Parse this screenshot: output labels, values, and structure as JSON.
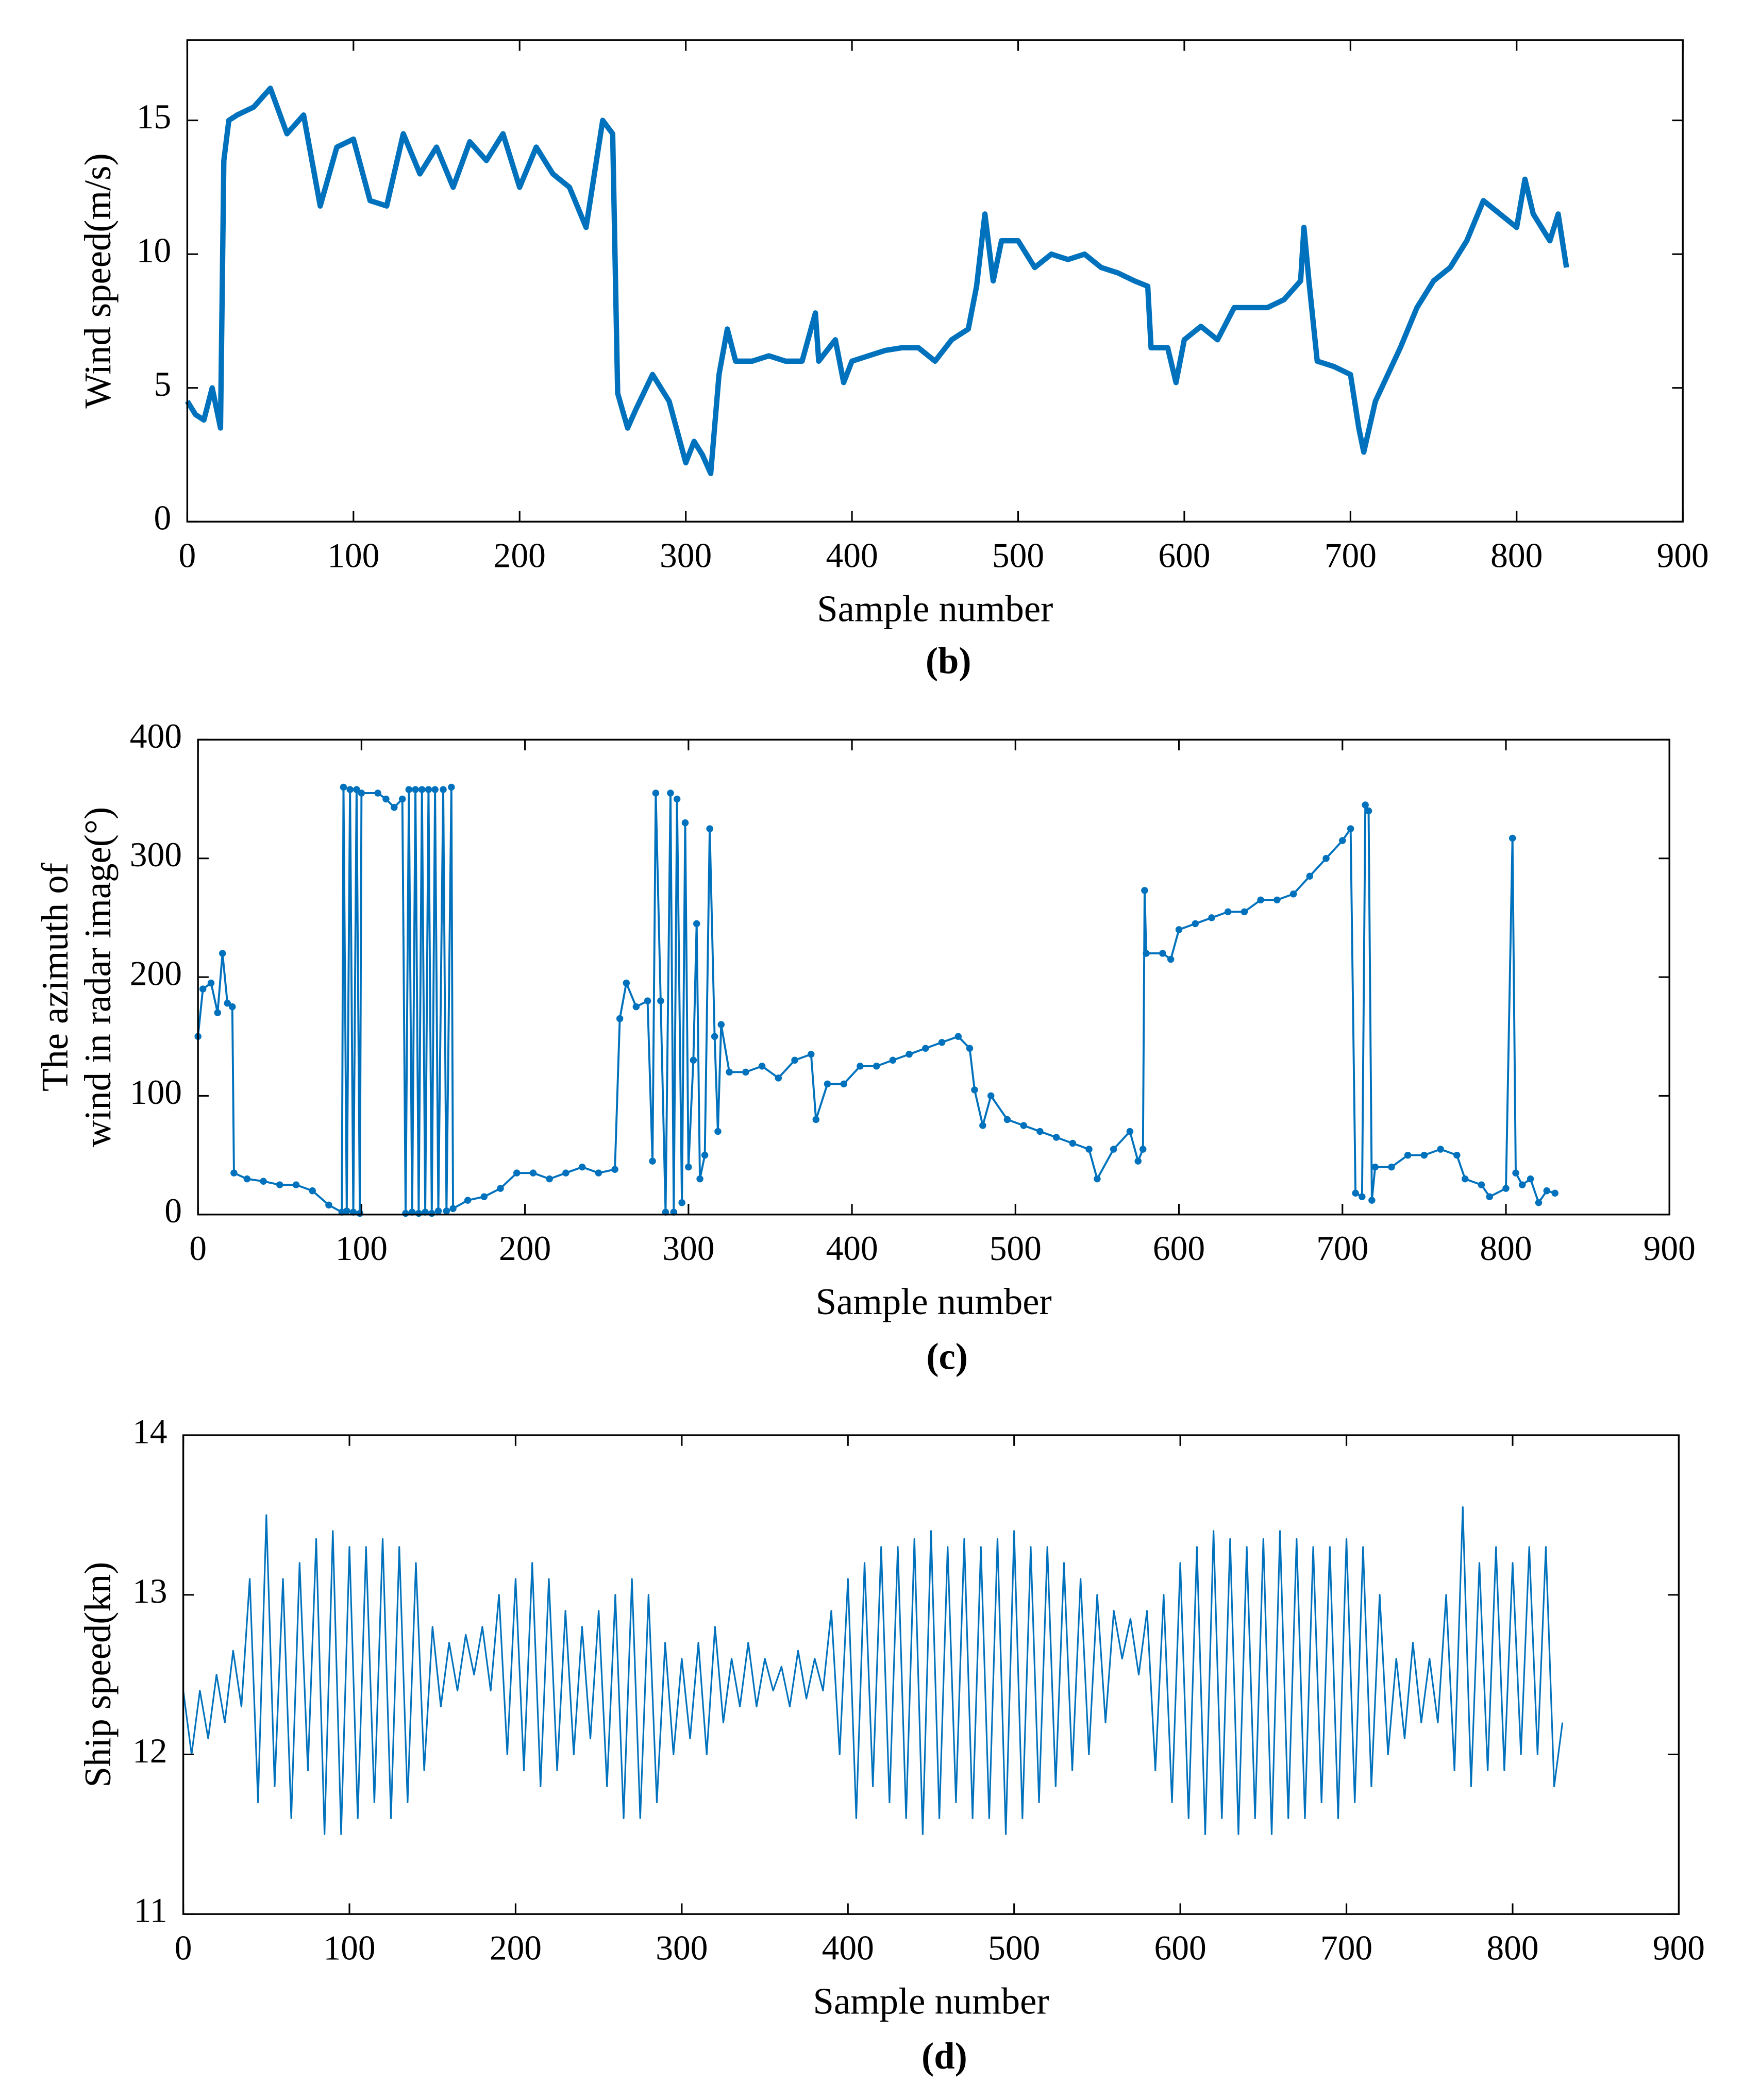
{
  "chart_data": [
    {
      "type": "line",
      "caption": "(b)",
      "xlabel": "Sample number",
      "ylabel": [
        "Wind speed(m/s)"
      ],
      "xlim": [
        0,
        900
      ],
      "xticks": [
        0,
        100,
        200,
        300,
        400,
        500,
        600,
        700,
        800,
        900
      ],
      "ylim": [
        0,
        18
      ],
      "yticks": [
        0,
        5,
        10,
        15
      ],
      "line_width": 4,
      "marker": null,
      "series": [
        {
          "name": "Wind speed",
          "color": "#0072bd",
          "x": [
            0,
            5,
            10,
            15,
            20,
            22,
            25,
            30,
            40,
            50,
            60,
            70,
            80,
            90,
            100,
            110,
            120,
            130,
            140,
            150,
            160,
            170,
            180,
            190,
            200,
            210,
            220,
            230,
            240,
            250,
            256,
            259,
            265,
            270,
            280,
            290,
            300,
            305,
            310,
            315,
            320,
            325,
            330,
            340,
            350,
            360,
            370,
            378,
            380,
            390,
            395,
            400,
            410,
            420,
            430,
            440,
            450,
            460,
            470,
            475,
            480,
            485,
            490,
            500,
            510,
            520,
            530,
            540,
            550,
            560,
            570,
            578,
            580,
            590,
            595,
            600,
            610,
            620,
            630,
            640,
            650,
            660,
            670,
            672,
            675,
            680,
            690,
            700,
            705,
            708,
            715,
            730,
            740,
            750,
            760,
            770,
            780,
            790,
            800,
            805,
            810,
            820,
            825,
            830
          ],
          "values": [
            4.5,
            4.0,
            3.8,
            5.0,
            3.5,
            13.5,
            15,
            15.2,
            15.5,
            16.2,
            14.5,
            15.2,
            11.8,
            14,
            14.3,
            12,
            11.8,
            14.5,
            13,
            14,
            12.5,
            14.2,
            13.5,
            14.5,
            12.5,
            14,
            13,
            12.5,
            11,
            15,
            14.5,
            4.8,
            3.5,
            4.2,
            5.5,
            4.5,
            2.2,
            3,
            2.5,
            1.8,
            5.5,
            7.2,
            6,
            6,
            6.2,
            6,
            6,
            7.8,
            6,
            6.8,
            5.2,
            6,
            6.2,
            6.4,
            6.5,
            6.5,
            6,
            6.8,
            7.2,
            8.8,
            11.5,
            9,
            10.5,
            10.5,
            9.5,
            10,
            9.8,
            10,
            9.5,
            9.3,
            9,
            8.8,
            6.5,
            6.5,
            5.2,
            6.8,
            7.3,
            6.8,
            8,
            8,
            8,
            8.3,
            9,
            11,
            9,
            6,
            5.8,
            5.5,
            3.5,
            2.6,
            4.5,
            6.5,
            8,
            9,
            9.5,
            10.5,
            12,
            11.5,
            11,
            12.8,
            11.5,
            10.5,
            11.5,
            9.5
          ]
        }
      ]
    },
    {
      "type": "line",
      "caption": "(c)",
      "xlabel": "Sample number",
      "ylabel": [
        "The azimuth of",
        "wind in radar image(°)"
      ],
      "xlim": [
        0,
        900
      ],
      "xticks": [
        0,
        100,
        200,
        300,
        400,
        500,
        600,
        700,
        800,
        900
      ],
      "ylim": [
        0,
        400
      ],
      "yticks": [
        0,
        100,
        200,
        300,
        400
      ],
      "line_width": 1.5,
      "marker": "o",
      "series": [
        {
          "name": "Azimuth",
          "color": "#0072bd",
          "x": [
            0,
            3,
            8,
            12,
            15,
            18,
            21,
            22,
            30,
            40,
            50,
            60,
            70,
            80,
            88,
            89,
            91,
            93,
            95,
            97,
            99,
            100,
            110,
            115,
            120,
            125,
            127,
            129,
            131,
            133,
            135,
            137,
            139,
            141,
            143,
            145,
            147,
            150,
            152,
            155,
            156,
            165,
            175,
            185,
            195,
            205,
            215,
            225,
            235,
            245,
            255,
            258,
            262,
            268,
            275,
            278,
            280,
            283,
            286,
            289,
            291,
            293,
            296,
            298,
            300,
            303,
            305,
            307,
            310,
            313,
            316,
            318,
            320,
            325,
            335,
            345,
            355,
            365,
            375,
            378,
            385,
            395,
            405,
            415,
            425,
            435,
            445,
            455,
            465,
            472,
            475,
            480,
            485,
            495,
            505,
            515,
            525,
            535,
            545,
            550,
            560,
            570,
            575,
            578,
            579,
            580,
            590,
            595,
            600,
            610,
            620,
            630,
            640,
            650,
            660,
            670,
            680,
            690,
            700,
            705,
            708,
            712,
            714,
            716,
            718,
            720,
            730,
            740,
            750,
            760,
            770,
            775,
            785,
            790,
            800,
            804,
            806,
            810,
            815,
            820,
            825,
            830
          ],
          "values": [
            150,
            190,
            195,
            170,
            220,
            178,
            175,
            35,
            30,
            28,
            25,
            25,
            20,
            8,
            2,
            360,
            3,
            358,
            2,
            358,
            1,
            355,
            355,
            350,
            343,
            350,
            1,
            358,
            2,
            358,
            1,
            358,
            2,
            358,
            1,
            358,
            3,
            358,
            3,
            360,
            5,
            12,
            15,
            22,
            35,
            35,
            30,
            35,
            40,
            35,
            38,
            165,
            195,
            175,
            180,
            45,
            355,
            180,
            2,
            355,
            2,
            350,
            10,
            330,
            40,
            130,
            245,
            30,
            50,
            325,
            150,
            70,
            160,
            120,
            120,
            125,
            115,
            130,
            135,
            80,
            110,
            110,
            125,
            125,
            130,
            135,
            140,
            145,
            150,
            140,
            105,
            75,
            100,
            80,
            75,
            70,
            65,
            60,
            55,
            30,
            55,
            70,
            45,
            55,
            273,
            220,
            220,
            215,
            240,
            245,
            250,
            255,
            255,
            265,
            265,
            270,
            285,
            300,
            315,
            325,
            18,
            15,
            345,
            340,
            12,
            40,
            40,
            50,
            50,
            55,
            50,
            30,
            25,
            15,
            22,
            317,
            35,
            25,
            30,
            10,
            20,
            18
          ]
        }
      ]
    },
    {
      "type": "line",
      "caption": "(d)",
      "xlabel": "Sample number",
      "ylabel": [
        "Ship speed(kn)"
      ],
      "xlim": [
        0,
        900
      ],
      "xticks": [
        0,
        100,
        200,
        300,
        400,
        500,
        600,
        700,
        800,
        900
      ],
      "ylim": [
        11,
        14
      ],
      "yticks": [
        11,
        12,
        13,
        14
      ],
      "line_width": 1.2,
      "marker": null,
      "series": [
        {
          "name": "Ship speed",
          "color": "#0072bd",
          "x": [
            0,
            5,
            10,
            15,
            20,
            25,
            30,
            35,
            40,
            45,
            50,
            55,
            60,
            65,
            70,
            75,
            80,
            85,
            90,
            95,
            100,
            105,
            110,
            115,
            120,
            125,
            130,
            135,
            140,
            145,
            150,
            155,
            160,
            165,
            170,
            175,
            180,
            185,
            190,
            195,
            200,
            205,
            210,
            215,
            220,
            225,
            230,
            235,
            240,
            245,
            250,
            255,
            260,
            265,
            270,
            275,
            280,
            285,
            290,
            295,
            300,
            305,
            310,
            315,
            320,
            325,
            330,
            335,
            340,
            345,
            350,
            355,
            360,
            365,
            370,
            375,
            380,
            385,
            390,
            395,
            400,
            405,
            410,
            415,
            420,
            425,
            430,
            435,
            440,
            445,
            450,
            455,
            460,
            465,
            470,
            475,
            480,
            485,
            490,
            495,
            500,
            505,
            510,
            515,
            520,
            525,
            530,
            535,
            540,
            545,
            550,
            555,
            560,
            565,
            570,
            575,
            580,
            585,
            590,
            595,
            600,
            605,
            610,
            615,
            620,
            625,
            630,
            635,
            640,
            645,
            650,
            655,
            660,
            665,
            670,
            675,
            680,
            685,
            690,
            695,
            700,
            705,
            710,
            715,
            720,
            725,
            730,
            735,
            740,
            745,
            750,
            755,
            760,
            765,
            770,
            775,
            780,
            785,
            790,
            795,
            800,
            805,
            810,
            815,
            820,
            825,
            830
          ],
          "values": [
            12.4,
            12.0,
            12.4,
            12.1,
            12.5,
            12.2,
            12.65,
            12.3,
            13.1,
            11.7,
            13.5,
            11.8,
            13.1,
            11.6,
            13.2,
            11.9,
            13.35,
            11.5,
            13.4,
            11.5,
            13.3,
            11.6,
            13.3,
            11.7,
            13.35,
            11.6,
            13.3,
            11.7,
            13.2,
            11.9,
            12.8,
            12.3,
            12.7,
            12.4,
            12.75,
            12.5,
            12.8,
            12.4,
            13.0,
            12.0,
            13.1,
            11.9,
            13.2,
            11.8,
            13.1,
            11.9,
            12.9,
            12.0,
            12.8,
            12.1,
            12.9,
            11.8,
            13.0,
            11.6,
            13.1,
            11.6,
            13.0,
            11.7,
            12.7,
            12.0,
            12.6,
            12.1,
            12.7,
            12.0,
            12.8,
            12.2,
            12.6,
            12.3,
            12.7,
            12.3,
            12.6,
            12.4,
            12.55,
            12.3,
            12.65,
            12.35,
            12.6,
            12.4,
            12.9,
            12.0,
            13.1,
            11.6,
            13.2,
            11.8,
            13.3,
            11.7,
            13.3,
            11.6,
            13.35,
            11.5,
            13.4,
            11.6,
            13.3,
            11.7,
            13.35,
            11.6,
            13.3,
            11.6,
            13.35,
            11.5,
            13.4,
            11.6,
            13.3,
            11.7,
            13.3,
            11.8,
            13.2,
            11.9,
            13.1,
            12.0,
            13.0,
            12.2,
            12.9,
            12.6,
            12.85,
            12.5,
            12.9,
            11.9,
            13.0,
            11.7,
            13.2,
            11.6,
            13.3,
            11.5,
            13.4,
            11.6,
            13.35,
            11.5,
            13.3,
            11.6,
            13.35,
            11.5,
            13.4,
            11.6,
            13.35,
            11.6,
            13.3,
            11.7,
            13.3,
            11.6,
            13.35,
            11.7,
            13.3,
            11.8,
            13.0,
            12.0,
            12.6,
            12.1,
            12.7,
            12.2,
            12.6,
            12.2,
            13.0,
            11.9,
            13.55,
            11.8,
            13.2,
            11.9,
            13.3,
            11.9,
            13.2,
            12.0,
            13.3,
            12.0,
            13.3,
            11.8,
            12.2
          ]
        }
      ]
    }
  ]
}
